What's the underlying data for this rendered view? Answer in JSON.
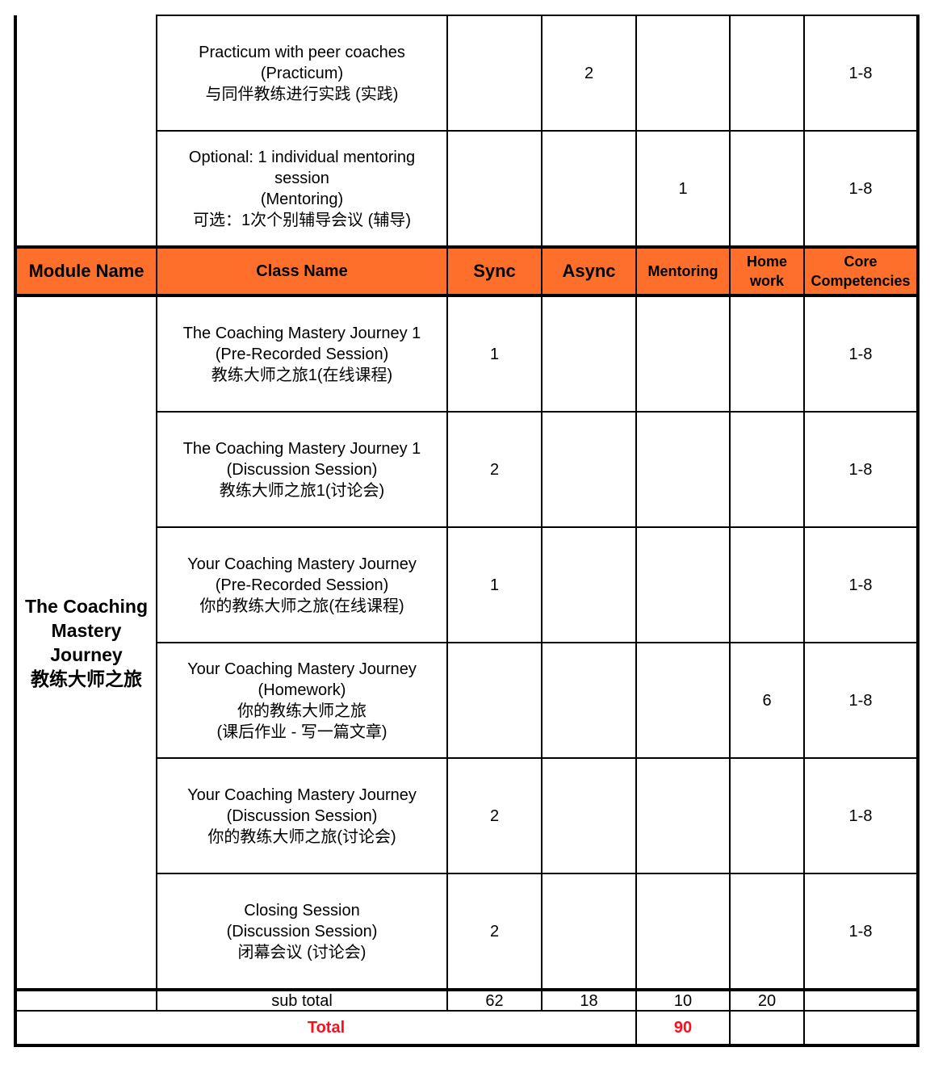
{
  "top_rows": [
    {
      "class_lines": [
        "Practicum with peer coaches",
        "(Practicum)",
        "与同伴教练进行实践 (实践)"
      ],
      "sync": "",
      "async": "2",
      "mentoring": "",
      "homework": "",
      "competencies": "1-8"
    },
    {
      "class_lines": [
        "Optional: 1 individual mentoring",
        "session",
        "(Mentoring)",
        "可选：1次个别辅导会议 (辅导)"
      ],
      "sync": "",
      "async": "",
      "mentoring": "1",
      "homework": "",
      "competencies": "1-8"
    }
  ],
  "header": {
    "module_name": "Module Name",
    "class_name": "Class Name",
    "sync": "Sync",
    "async": "Async",
    "mentoring": "Mentoring",
    "homework_1": "Home",
    "homework_2": "work",
    "competencies_1": "Core",
    "competencies_2": "Competencies",
    "color": "#fd6f2a"
  },
  "module": {
    "name_lines": [
      "The Coaching",
      "Mastery",
      "Journey",
      "教练大师之旅"
    ]
  },
  "rows": [
    {
      "class_lines": [
        "The Coaching Mastery Journey 1",
        "(Pre-Recorded Session)",
        "教练大师之旅1(在线课程)"
      ],
      "sync": "1",
      "async": "",
      "mentoring": "",
      "homework": "",
      "competencies": "1-8"
    },
    {
      "class_lines": [
        "The Coaching Mastery Journey 1",
        "(Discussion Session)",
        "教练大师之旅1(讨论会)"
      ],
      "sync": "2",
      "async": "",
      "mentoring": "",
      "homework": "",
      "competencies": "1-8"
    },
    {
      "class_lines": [
        "Your Coaching Mastery Journey",
        "(Pre-Recorded Session)",
        "你的教练大师之旅(在线课程)"
      ],
      "sync": "1",
      "async": "",
      "mentoring": "",
      "homework": "",
      "competencies": "1-8"
    },
    {
      "class_lines": [
        "Your Coaching Mastery Journey",
        "(Homework)",
        "你的教练大师之旅",
        "(课后作业 - 写一篇文章)"
      ],
      "sync": "",
      "async": "",
      "mentoring": "",
      "homework": "6",
      "competencies": "1-8"
    },
    {
      "class_lines": [
        "Your Coaching Mastery Journey",
        "(Discussion Session)",
        "你的教练大师之旅(讨论会)"
      ],
      "sync": "2",
      "async": "",
      "mentoring": "",
      "homework": "",
      "competencies": "1-8"
    },
    {
      "class_lines": [
        "Closing Session",
        "(Discussion Session)",
        "闭幕会议 (讨论会)"
      ],
      "sync": "2",
      "async": "",
      "mentoring": "",
      "homework": "",
      "competencies": "1-8"
    }
  ],
  "subtotal": {
    "label": "sub total",
    "sync": "62",
    "async": "18",
    "mentoring": "10",
    "homework": "20"
  },
  "total": {
    "label": "Total",
    "value": "90",
    "color": "#ff0d1d"
  }
}
